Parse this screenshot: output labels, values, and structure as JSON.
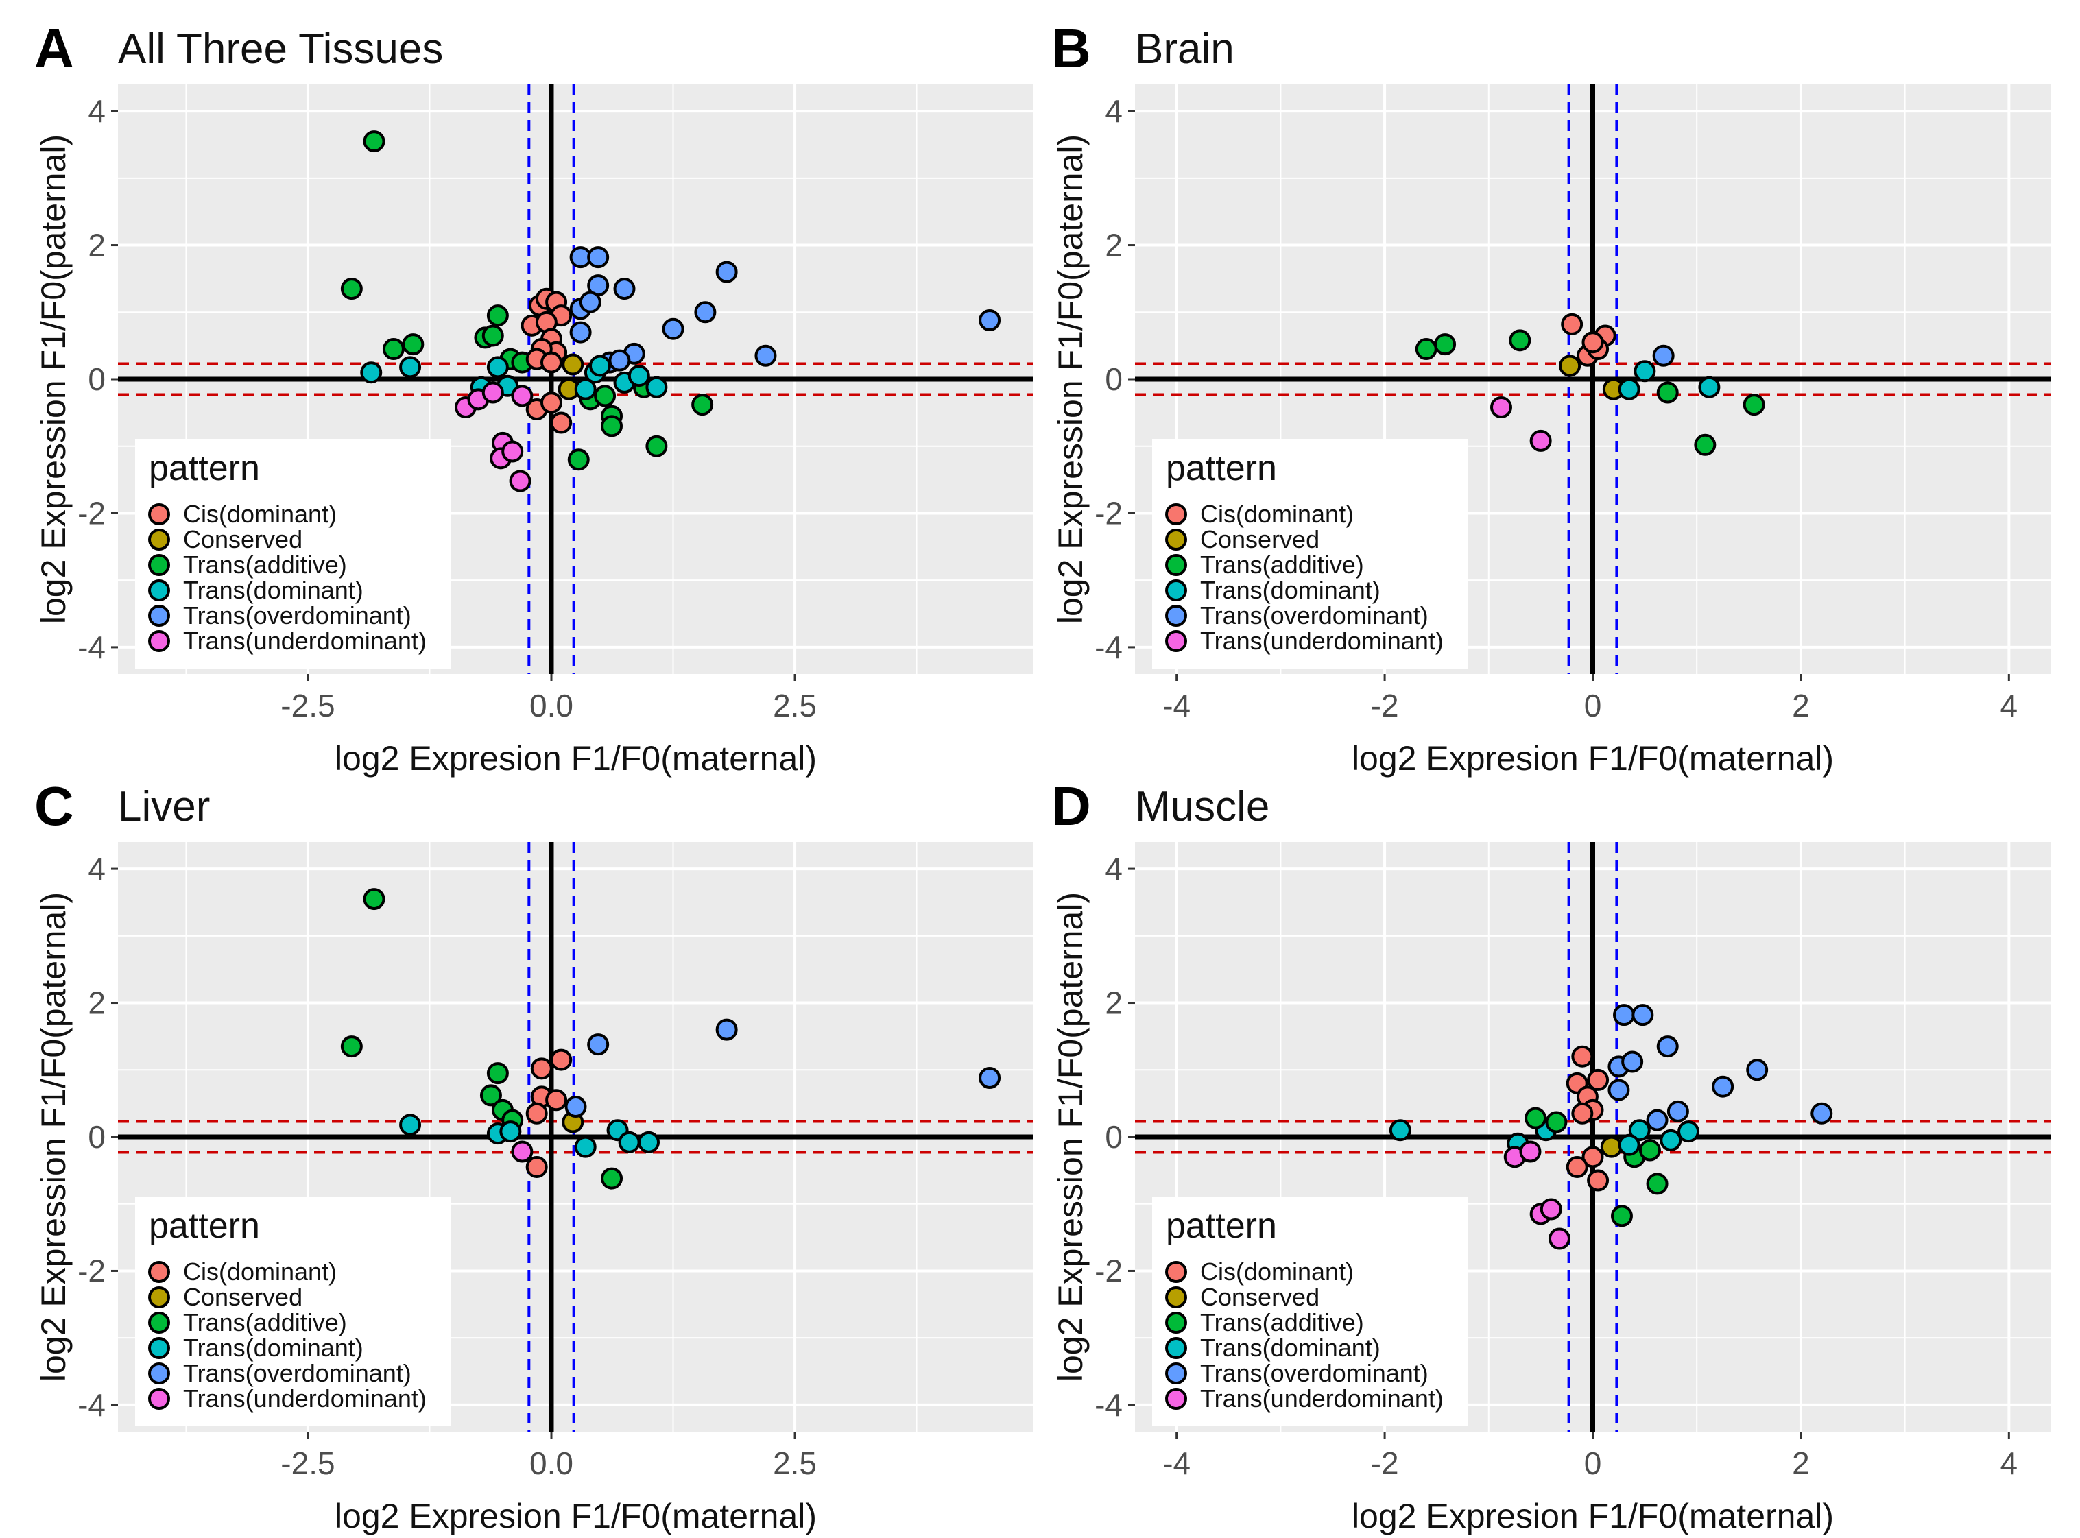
{
  "legend": {
    "title": "pattern",
    "items": [
      {
        "label": "Cis(dominant)",
        "color": "#F8766D"
      },
      {
        "label": "Conserved",
        "color": "#B79F00"
      },
      {
        "label": "Trans(additive)",
        "color": "#00BA38"
      },
      {
        "label": "Trans(dominant)",
        "color": "#00BFC4"
      },
      {
        "label": "Trans(overdominant)",
        "color": "#619CFF"
      },
      {
        "label": "Trans(underdominant)",
        "color": "#F564E3"
      }
    ]
  },
  "colors": {
    "panel_bg": "#EBEBEB",
    "grid": "#FFFFFF",
    "threshold_x": "#0000FF",
    "threshold_y": "#CC0000",
    "axis_line": "#000000"
  },
  "chart_data": [
    {
      "type": "scatter",
      "letter": "A",
      "title": "All Three Tissues",
      "xlabel": "log2 Expresion F1/F0(maternal)",
      "ylabel": "log2 Expression F1/F0(paternal)",
      "xlim": [
        -4.45,
        4.95
      ],
      "ylim": [
        -4.4,
        4.4
      ],
      "xticks": [
        -2.5,
        0.0,
        2.5
      ],
      "xtick_labels": [
        "-2.5",
        "0.0",
        "2.5"
      ],
      "yticks": [
        4,
        2,
        0,
        -2,
        -4
      ],
      "ytick_labels": [
        "4",
        "2",
        "0",
        "-2",
        "-4"
      ],
      "x_thresholds": [
        -0.23,
        0.23
      ],
      "y_thresholds": [
        0.23,
        -0.23
      ],
      "points": [
        {
          "x": -1.82,
          "y": 3.55,
          "pattern": "Trans(additive)"
        },
        {
          "x": -2.05,
          "y": 1.35,
          "pattern": "Trans(additive)"
        },
        {
          "x": -1.62,
          "y": 0.45,
          "pattern": "Trans(additive)"
        },
        {
          "x": -1.42,
          "y": 0.52,
          "pattern": "Trans(additive)"
        },
        {
          "x": -1.85,
          "y": 0.1,
          "pattern": "Trans(dominant)"
        },
        {
          "x": -1.45,
          "y": 0.18,
          "pattern": "Trans(dominant)"
        },
        {
          "x": -0.55,
          "y": 0.95,
          "pattern": "Trans(additive)"
        },
        {
          "x": -0.68,
          "y": 0.62,
          "pattern": "Trans(additive)"
        },
        {
          "x": -0.6,
          "y": 0.65,
          "pattern": "Trans(additive)"
        },
        {
          "x": -0.42,
          "y": 0.3,
          "pattern": "Trans(additive)"
        },
        {
          "x": -0.3,
          "y": 0.25,
          "pattern": "Trans(additive)"
        },
        {
          "x": -0.55,
          "y": 0.18,
          "pattern": "Trans(dominant)"
        },
        {
          "x": -0.72,
          "y": -0.12,
          "pattern": "Trans(dominant)"
        },
        {
          "x": -0.45,
          "y": -0.1,
          "pattern": "Trans(dominant)"
        },
        {
          "x": -0.2,
          "y": 0.8,
          "pattern": "Cis(dominant)"
        },
        {
          "x": -0.12,
          "y": 1.1,
          "pattern": "Cis(dominant)"
        },
        {
          "x": -0.05,
          "y": 1.2,
          "pattern": "Cis(dominant)"
        },
        {
          "x": 0.05,
          "y": 1.15,
          "pattern": "Cis(dominant)"
        },
        {
          "x": 0.1,
          "y": 0.95,
          "pattern": "Cis(dominant)"
        },
        {
          "x": -0.05,
          "y": 0.85,
          "pattern": "Cis(dominant)"
        },
        {
          "x": 0.0,
          "y": 0.6,
          "pattern": "Cis(dominant)"
        },
        {
          "x": 0.05,
          "y": 0.4,
          "pattern": "Cis(dominant)"
        },
        {
          "x": -0.1,
          "y": 0.45,
          "pattern": "Cis(dominant)"
        },
        {
          "x": -0.15,
          "y": 0.3,
          "pattern": "Cis(dominant)"
        },
        {
          "x": 0.0,
          "y": 0.25,
          "pattern": "Cis(dominant)"
        },
        {
          "x": -0.15,
          "y": -0.45,
          "pattern": "Cis(dominant)"
        },
        {
          "x": 0.1,
          "y": -0.65,
          "pattern": "Cis(dominant)"
        },
        {
          "x": 0.0,
          "y": -0.35,
          "pattern": "Cis(dominant)"
        },
        {
          "x": 0.22,
          "y": 0.22,
          "pattern": "Conserved"
        },
        {
          "x": 0.18,
          "y": -0.15,
          "pattern": "Conserved"
        },
        {
          "x": 0.3,
          "y": 1.82,
          "pattern": "Trans(overdominant)"
        },
        {
          "x": 0.48,
          "y": 1.82,
          "pattern": "Trans(overdominant)"
        },
        {
          "x": 0.48,
          "y": 1.4,
          "pattern": "Trans(overdominant)"
        },
        {
          "x": 0.75,
          "y": 1.35,
          "pattern": "Trans(overdominant)"
        },
        {
          "x": 0.3,
          "y": 1.05,
          "pattern": "Trans(overdominant)"
        },
        {
          "x": 0.4,
          "y": 1.15,
          "pattern": "Trans(overdominant)"
        },
        {
          "x": 0.3,
          "y": 0.7,
          "pattern": "Trans(overdominant)"
        },
        {
          "x": 1.25,
          "y": 0.75,
          "pattern": "Trans(overdominant)"
        },
        {
          "x": 1.58,
          "y": 1.0,
          "pattern": "Trans(overdominant)"
        },
        {
          "x": 1.8,
          "y": 1.6,
          "pattern": "Trans(overdominant)"
        },
        {
          "x": 2.2,
          "y": 0.35,
          "pattern": "Trans(overdominant)"
        },
        {
          "x": 4.5,
          "y": 0.88,
          "pattern": "Trans(overdominant)"
        },
        {
          "x": 0.6,
          "y": 0.25,
          "pattern": "Trans(overdominant)"
        },
        {
          "x": 0.85,
          "y": 0.38,
          "pattern": "Trans(overdominant)"
        },
        {
          "x": 0.7,
          "y": 0.28,
          "pattern": "Trans(overdominant)"
        },
        {
          "x": 0.4,
          "y": -0.3,
          "pattern": "Trans(additive)"
        },
        {
          "x": 0.62,
          "y": -0.55,
          "pattern": "Trans(additive)"
        },
        {
          "x": 0.62,
          "y": -0.7,
          "pattern": "Trans(additive)"
        },
        {
          "x": 0.28,
          "y": -1.2,
          "pattern": "Trans(additive)"
        },
        {
          "x": 1.08,
          "y": -1.0,
          "pattern": "Trans(additive)"
        },
        {
          "x": 1.55,
          "y": -0.38,
          "pattern": "Trans(additive)"
        },
        {
          "x": 0.55,
          "y": -0.25,
          "pattern": "Trans(additive)"
        },
        {
          "x": 0.95,
          "y": -0.12,
          "pattern": "Trans(additive)"
        },
        {
          "x": 0.45,
          "y": 0.1,
          "pattern": "Trans(dominant)"
        },
        {
          "x": 0.35,
          "y": -0.15,
          "pattern": "Trans(dominant)"
        },
        {
          "x": 0.75,
          "y": -0.05,
          "pattern": "Trans(dominant)"
        },
        {
          "x": 0.9,
          "y": 0.05,
          "pattern": "Trans(dominant)"
        },
        {
          "x": 1.08,
          "y": -0.12,
          "pattern": "Trans(dominant)"
        },
        {
          "x": 0.5,
          "y": 0.2,
          "pattern": "Trans(dominant)"
        },
        {
          "x": -0.88,
          "y": -0.42,
          "pattern": "Trans(underdominant)"
        },
        {
          "x": -0.75,
          "y": -0.3,
          "pattern": "Trans(underdominant)"
        },
        {
          "x": -0.6,
          "y": -0.2,
          "pattern": "Trans(underdominant)"
        },
        {
          "x": -0.5,
          "y": -0.95,
          "pattern": "Trans(underdominant)"
        },
        {
          "x": -0.52,
          "y": -1.18,
          "pattern": "Trans(underdominant)"
        },
        {
          "x": -0.4,
          "y": -1.08,
          "pattern": "Trans(underdominant)"
        },
        {
          "x": -0.32,
          "y": -1.52,
          "pattern": "Trans(underdominant)"
        },
        {
          "x": -0.3,
          "y": -0.25,
          "pattern": "Trans(underdominant)"
        }
      ]
    },
    {
      "type": "scatter",
      "letter": "B",
      "title": "Brain",
      "xlabel": "log2 Expresion F1/F0(maternal)",
      "ylabel": "log2 Expression F1/F0(paternal)",
      "xlim": [
        -4.4,
        4.4
      ],
      "ylim": [
        -4.4,
        4.4
      ],
      "xticks": [
        -4,
        -2,
        0,
        2,
        4
      ],
      "xtick_labels": [
        "-4",
        "-2",
        "0",
        "2",
        "4"
      ],
      "yticks": [
        4,
        2,
        0,
        -2,
        -4
      ],
      "ytick_labels": [
        "4",
        "2",
        "0",
        "-2",
        "-4"
      ],
      "x_thresholds": [
        -0.23,
        0.23
      ],
      "y_thresholds": [
        0.23,
        -0.23
      ],
      "points": [
        {
          "x": -1.6,
          "y": 0.45,
          "pattern": "Trans(additive)"
        },
        {
          "x": -1.42,
          "y": 0.52,
          "pattern": "Trans(additive)"
        },
        {
          "x": -0.7,
          "y": 0.58,
          "pattern": "Trans(additive)"
        },
        {
          "x": -0.2,
          "y": 0.82,
          "pattern": "Cis(dominant)"
        },
        {
          "x": 0.12,
          "y": 0.65,
          "pattern": "Cis(dominant)"
        },
        {
          "x": -0.05,
          "y": 0.35,
          "pattern": "Cis(dominant)"
        },
        {
          "x": 0.05,
          "y": 0.45,
          "pattern": "Cis(dominant)"
        },
        {
          "x": 0.0,
          "y": 0.55,
          "pattern": "Cis(dominant)"
        },
        {
          "x": -0.22,
          "y": 0.2,
          "pattern": "Conserved"
        },
        {
          "x": 0.2,
          "y": -0.15,
          "pattern": "Conserved"
        },
        {
          "x": 0.5,
          "y": 0.12,
          "pattern": "Trans(dominant)"
        },
        {
          "x": 0.35,
          "y": -0.15,
          "pattern": "Trans(dominant)"
        },
        {
          "x": 1.12,
          "y": -0.12,
          "pattern": "Trans(dominant)"
        },
        {
          "x": 0.68,
          "y": 0.35,
          "pattern": "Trans(overdominant)"
        },
        {
          "x": 0.72,
          "y": -0.2,
          "pattern": "Trans(additive)"
        },
        {
          "x": 1.55,
          "y": -0.38,
          "pattern": "Trans(additive)"
        },
        {
          "x": 1.08,
          "y": -0.98,
          "pattern": "Trans(additive)"
        },
        {
          "x": -0.88,
          "y": -0.42,
          "pattern": "Trans(underdominant)"
        },
        {
          "x": -0.5,
          "y": -0.92,
          "pattern": "Trans(underdominant)"
        }
      ]
    },
    {
      "type": "scatter",
      "letter": "C",
      "title": "Liver",
      "xlabel": "log2 Expresion F1/F0(maternal)",
      "ylabel": "log2 Expression F1/F0(paternal)",
      "xlim": [
        -4.45,
        4.95
      ],
      "ylim": [
        -4.4,
        4.4
      ],
      "xticks": [
        -2.5,
        0.0,
        2.5
      ],
      "xtick_labels": [
        "-2.5",
        "0.0",
        "2.5"
      ],
      "yticks": [
        4,
        2,
        0,
        -2,
        -4
      ],
      "ytick_labels": [
        "4",
        "2",
        "0",
        "-2",
        "-4"
      ],
      "x_thresholds": [
        -0.23,
        0.23
      ],
      "y_thresholds": [
        0.23,
        -0.23
      ],
      "points": [
        {
          "x": -1.82,
          "y": 3.55,
          "pattern": "Trans(additive)"
        },
        {
          "x": -2.05,
          "y": 1.35,
          "pattern": "Trans(additive)"
        },
        {
          "x": -1.45,
          "y": 0.18,
          "pattern": "Trans(dominant)"
        },
        {
          "x": -0.55,
          "y": 0.95,
          "pattern": "Trans(additive)"
        },
        {
          "x": -0.62,
          "y": 0.62,
          "pattern": "Trans(additive)"
        },
        {
          "x": -0.5,
          "y": 0.4,
          "pattern": "Trans(additive)"
        },
        {
          "x": -0.4,
          "y": 0.25,
          "pattern": "Trans(additive)"
        },
        {
          "x": -0.55,
          "y": 0.05,
          "pattern": "Trans(dominant)"
        },
        {
          "x": -0.42,
          "y": 0.08,
          "pattern": "Trans(dominant)"
        },
        {
          "x": -0.1,
          "y": 1.02,
          "pattern": "Cis(dominant)"
        },
        {
          "x": 0.1,
          "y": 1.15,
          "pattern": "Cis(dominant)"
        },
        {
          "x": -0.1,
          "y": 0.6,
          "pattern": "Cis(dominant)"
        },
        {
          "x": 0.05,
          "y": 0.55,
          "pattern": "Cis(dominant)"
        },
        {
          "x": -0.15,
          "y": 0.35,
          "pattern": "Cis(dominant)"
        },
        {
          "x": -0.15,
          "y": -0.45,
          "pattern": "Cis(dominant)"
        },
        {
          "x": 0.22,
          "y": 0.22,
          "pattern": "Conserved"
        },
        {
          "x": 0.48,
          "y": 1.38,
          "pattern": "Trans(overdominant)"
        },
        {
          "x": 1.8,
          "y": 1.6,
          "pattern": "Trans(overdominant)"
        },
        {
          "x": 4.5,
          "y": 0.88,
          "pattern": "Trans(overdominant)"
        },
        {
          "x": 0.25,
          "y": 0.45,
          "pattern": "Trans(overdominant)"
        },
        {
          "x": 0.35,
          "y": -0.15,
          "pattern": "Trans(dominant)"
        },
        {
          "x": 0.68,
          "y": 0.1,
          "pattern": "Trans(dominant)"
        },
        {
          "x": 0.8,
          "y": -0.08,
          "pattern": "Trans(dominant)"
        },
        {
          "x": 1.0,
          "y": -0.08,
          "pattern": "Trans(dominant)"
        },
        {
          "x": 0.62,
          "y": -0.62,
          "pattern": "Trans(additive)"
        },
        {
          "x": -0.3,
          "y": -0.22,
          "pattern": "Trans(underdominant)"
        }
      ]
    },
    {
      "type": "scatter",
      "letter": "D",
      "title": "Muscle",
      "xlabel": "log2 Expresion F1/F0(maternal)",
      "ylabel": "log2 Expression F1/F0(paternal)",
      "xlim": [
        -4.4,
        4.4
      ],
      "ylim": [
        -4.4,
        4.4
      ],
      "xticks": [
        -4,
        -2,
        0,
        2,
        4
      ],
      "xtick_labels": [
        "-4",
        "-2",
        "0",
        "2",
        "4"
      ],
      "yticks": [
        4,
        2,
        0,
        -2,
        -4
      ],
      "ytick_labels": [
        "4",
        "2",
        "0",
        "-2",
        "-4"
      ],
      "x_thresholds": [
        -0.23,
        0.23
      ],
      "y_thresholds": [
        0.23,
        -0.23
      ],
      "points": [
        {
          "x": -1.85,
          "y": 0.1,
          "pattern": "Trans(dominant)"
        },
        {
          "x": -0.72,
          "y": -0.1,
          "pattern": "Trans(dominant)"
        },
        {
          "x": -0.45,
          "y": 0.1,
          "pattern": "Trans(dominant)"
        },
        {
          "x": -0.55,
          "y": 0.28,
          "pattern": "Trans(additive)"
        },
        {
          "x": -0.35,
          "y": 0.22,
          "pattern": "Trans(additive)"
        },
        {
          "x": -0.1,
          "y": 1.2,
          "pattern": "Cis(dominant)"
        },
        {
          "x": -0.15,
          "y": 0.8,
          "pattern": "Cis(dominant)"
        },
        {
          "x": 0.05,
          "y": 0.85,
          "pattern": "Cis(dominant)"
        },
        {
          "x": -0.05,
          "y": 0.6,
          "pattern": "Cis(dominant)"
        },
        {
          "x": 0.0,
          "y": 0.4,
          "pattern": "Cis(dominant)"
        },
        {
          "x": -0.1,
          "y": 0.35,
          "pattern": "Cis(dominant)"
        },
        {
          "x": 0.0,
          "y": -0.3,
          "pattern": "Cis(dominant)"
        },
        {
          "x": -0.15,
          "y": -0.45,
          "pattern": "Cis(dominant)"
        },
        {
          "x": 0.05,
          "y": -0.65,
          "pattern": "Cis(dominant)"
        },
        {
          "x": 0.18,
          "y": -0.15,
          "pattern": "Conserved"
        },
        {
          "x": 0.3,
          "y": 1.82,
          "pattern": "Trans(overdominant)"
        },
        {
          "x": 0.48,
          "y": 1.82,
          "pattern": "Trans(overdominant)"
        },
        {
          "x": 0.72,
          "y": 1.35,
          "pattern": "Trans(overdominant)"
        },
        {
          "x": 0.25,
          "y": 1.05,
          "pattern": "Trans(overdominant)"
        },
        {
          "x": 0.38,
          "y": 1.12,
          "pattern": "Trans(overdominant)"
        },
        {
          "x": 0.25,
          "y": 0.7,
          "pattern": "Trans(overdominant)"
        },
        {
          "x": 1.25,
          "y": 0.75,
          "pattern": "Trans(overdominant)"
        },
        {
          "x": 1.58,
          "y": 1.0,
          "pattern": "Trans(overdominant)"
        },
        {
          "x": 2.2,
          "y": 0.35,
          "pattern": "Trans(overdominant)"
        },
        {
          "x": 0.62,
          "y": 0.25,
          "pattern": "Trans(overdominant)"
        },
        {
          "x": 0.82,
          "y": 0.38,
          "pattern": "Trans(overdominant)"
        },
        {
          "x": 0.4,
          "y": -0.3,
          "pattern": "Trans(additive)"
        },
        {
          "x": 0.55,
          "y": -0.2,
          "pattern": "Trans(additive)"
        },
        {
          "x": 0.62,
          "y": -0.7,
          "pattern": "Trans(additive)"
        },
        {
          "x": 0.28,
          "y": -1.18,
          "pattern": "Trans(additive)"
        },
        {
          "x": 0.45,
          "y": 0.1,
          "pattern": "Trans(dominant)"
        },
        {
          "x": 0.35,
          "y": -0.12,
          "pattern": "Trans(dominant)"
        },
        {
          "x": 0.75,
          "y": -0.05,
          "pattern": "Trans(dominant)"
        },
        {
          "x": 0.92,
          "y": 0.08,
          "pattern": "Trans(dominant)"
        },
        {
          "x": -0.75,
          "y": -0.3,
          "pattern": "Trans(underdominant)"
        },
        {
          "x": -0.6,
          "y": -0.22,
          "pattern": "Trans(underdominant)"
        },
        {
          "x": -0.5,
          "y": -1.15,
          "pattern": "Trans(underdominant)"
        },
        {
          "x": -0.4,
          "y": -1.08,
          "pattern": "Trans(underdominant)"
        },
        {
          "x": -0.32,
          "y": -1.52,
          "pattern": "Trans(underdominant)"
        }
      ]
    }
  ]
}
